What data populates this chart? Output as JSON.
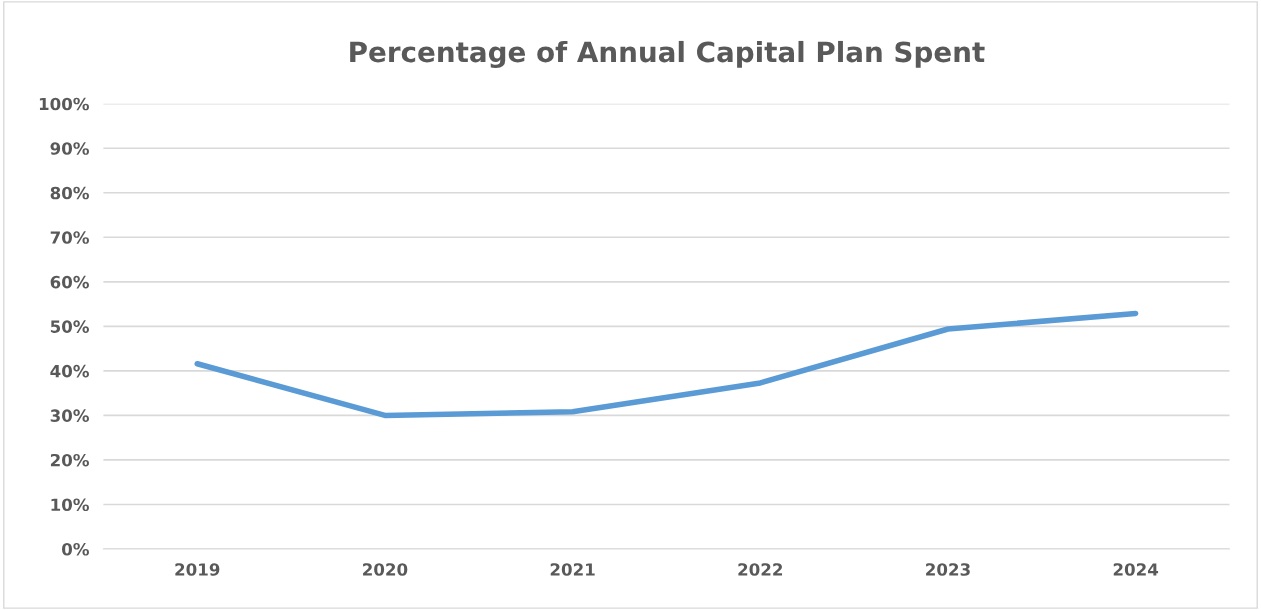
{
  "chart_data": {
    "type": "line",
    "title": "Percentage of Annual Capital Plan Spent",
    "categories": [
      "2019",
      "2020",
      "2021",
      "2022",
      "2023",
      "2024"
    ],
    "series": [
      {
        "color": "#5b9bd5",
        "values": [
          41.6,
          30.0,
          30.8,
          37.3,
          49.4,
          52.9
        ]
      }
    ],
    "ylim": [
      0,
      100
    ],
    "yticks": [
      {
        "value": 0,
        "label": "0%"
      },
      {
        "value": 10,
        "label": "10%"
      },
      {
        "value": 20,
        "label": "20%"
      },
      {
        "value": 30,
        "label": "30%"
      },
      {
        "value": 40,
        "label": "40%"
      },
      {
        "value": 50,
        "label": "50%"
      },
      {
        "value": 60,
        "label": "60%"
      },
      {
        "value": 70,
        "label": "70%"
      },
      {
        "value": 80,
        "label": "80%"
      },
      {
        "value": 90,
        "label": "90%"
      },
      {
        "value": 100,
        "label": "100%"
      }
    ],
    "grid": "y",
    "marker": "none",
    "line_style": "solid"
  }
}
